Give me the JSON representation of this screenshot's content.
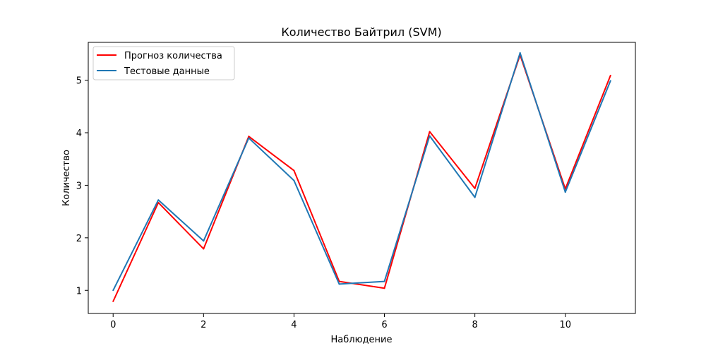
{
  "chart_data": {
    "type": "line",
    "title": "Количество Байтрил  (SVM)",
    "xlabel": "Наблюдение",
    "ylabel": "Количество",
    "x": [
      0,
      1,
      2,
      3,
      4,
      5,
      6,
      7,
      8,
      9,
      10,
      11
    ],
    "xlim": [
      -0.55,
      11.55
    ],
    "ylim": [
      0.56,
      5.72
    ],
    "xticks": [
      0,
      2,
      4,
      6,
      8,
      10
    ],
    "yticks": [
      1,
      2,
      3,
      4,
      5
    ],
    "grid": false,
    "legend_position": "top-left",
    "series": [
      {
        "name": "Прогноз количества",
        "color": "#ff0000",
        "values": [
          0.79,
          2.67,
          1.79,
          3.93,
          3.28,
          1.17,
          1.04,
          4.02,
          2.94,
          5.48,
          2.93,
          5.09
        ]
      },
      {
        "name": "Тестовые данные",
        "color": "#1f77b4",
        "values": [
          1.0,
          2.72,
          1.94,
          3.9,
          3.09,
          1.12,
          1.17,
          3.94,
          2.77,
          5.52,
          2.87,
          4.99
        ]
      }
    ]
  }
}
